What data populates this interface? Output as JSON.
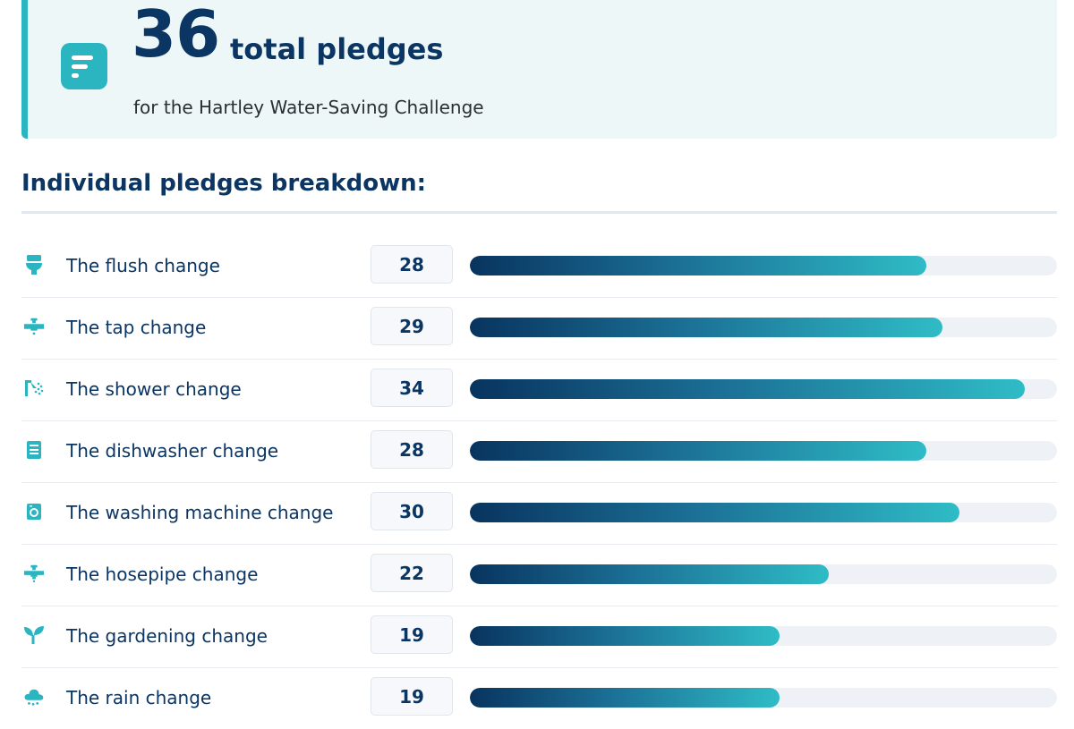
{
  "summary": {
    "icon": "chart-list-icon",
    "total": "36",
    "total_label": "total pledges",
    "subtitle": "for the Hartley Water-Saving Challenge"
  },
  "breakdown": {
    "title": "Individual pledges breakdown:",
    "max": 36,
    "items": [
      {
        "icon": "toilet-icon",
        "label": "The flush change",
        "count": "28",
        "value": 28
      },
      {
        "icon": "tap-icon",
        "label": "The tap change",
        "count": "29",
        "value": 29
      },
      {
        "icon": "shower-icon",
        "label": "The shower change",
        "count": "34",
        "value": 34
      },
      {
        "icon": "dishwasher-icon",
        "label": "The dishwasher change",
        "count": "28",
        "value": 28
      },
      {
        "icon": "washing-machine-icon",
        "label": "The washing machine change",
        "count": "30",
        "value": 30
      },
      {
        "icon": "hosepipe-icon",
        "label": "The hosepipe change",
        "count": "22",
        "value": 22
      },
      {
        "icon": "plant-icon",
        "label": "The gardening change",
        "count": "19",
        "value": 19
      },
      {
        "icon": "rain-cloud-icon",
        "label": "The rain change",
        "count": "19",
        "value": 19
      }
    ]
  },
  "colors": {
    "accent": "#2bb5c1",
    "navy": "#0b3563",
    "bar_start": "#08345f",
    "bar_end": "#2fbcc6",
    "track": "#eef1f6"
  }
}
